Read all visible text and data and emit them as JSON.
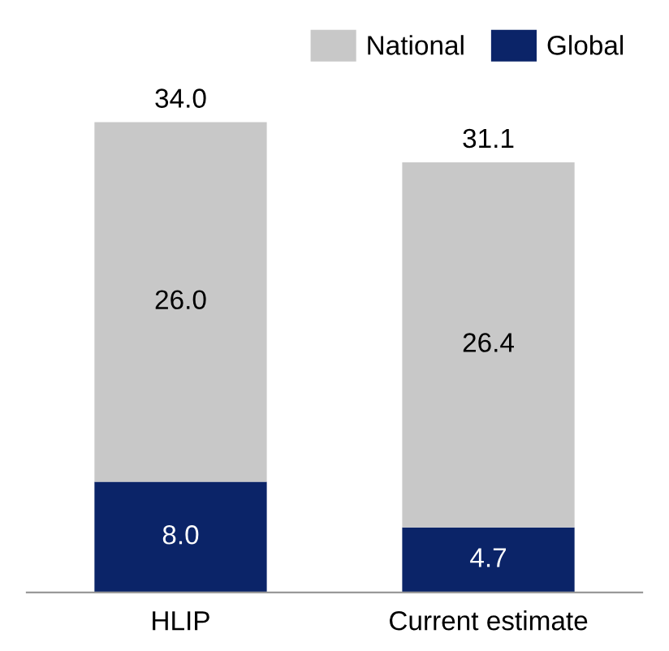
{
  "chart_data": {
    "type": "bar",
    "stacked": true,
    "categories": [
      "HLIP",
      "Current estimate"
    ],
    "series": [
      {
        "name": "Global",
        "color": "#0b2468",
        "values": [
          8.0,
          4.7
        ],
        "value_labels": [
          "8.0",
          "4.7"
        ]
      },
      {
        "name": "National",
        "color": "#c8c8c8",
        "values": [
          26.0,
          26.4
        ],
        "value_labels": [
          "26.0",
          "26.4"
        ]
      }
    ],
    "totals": [
      "34.0",
      "31.1"
    ],
    "legend": "top right",
    "tick_labels": "x"
  }
}
